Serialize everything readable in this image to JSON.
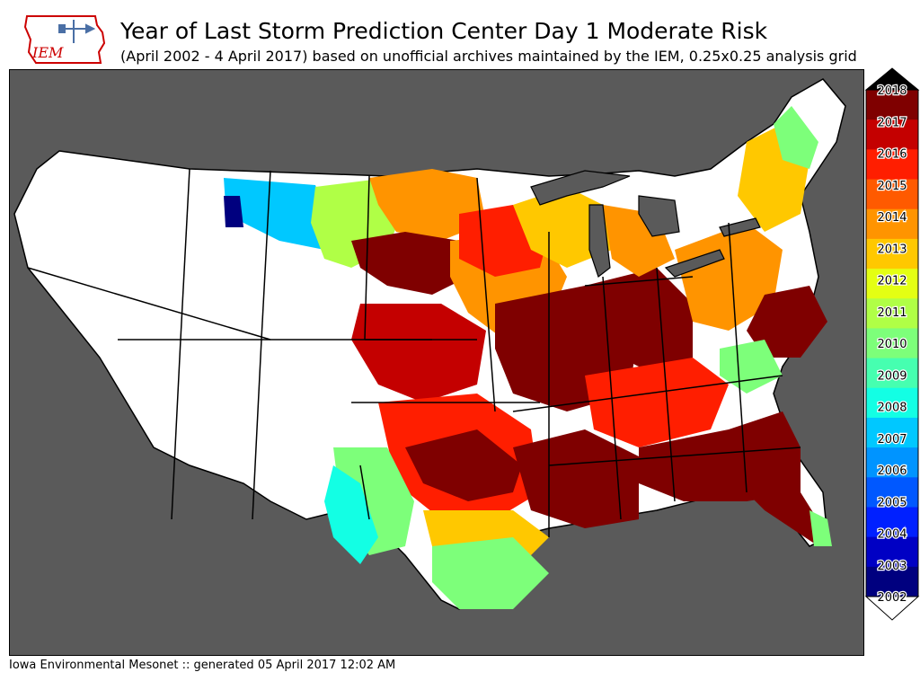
{
  "header": {
    "title": "Year of Last Storm Prediction Center Day 1 Moderate Risk",
    "subtitle": "(April 2002 - 4 April 2017) based on unofficial archives maintained by the IEM, 0.25x0.25 analysis grid"
  },
  "logo": {
    "text": "IEM",
    "color": "#cc0000"
  },
  "footer": {
    "credit": "Iowa Environmental Mesonet :: generated 05 April 2017 12:02 AM"
  },
  "legend": {
    "years": [
      "2018",
      "2017",
      "2016",
      "2015",
      "2014",
      "2013",
      "2012",
      "2011",
      "2010",
      "2009",
      "2008",
      "2007",
      "2006",
      "2005",
      "2004",
      "2003",
      "2002"
    ],
    "colors": [
      "#7f0000",
      "#c40000",
      "#ff1e00",
      "#ff5a00",
      "#ff9400",
      "#ffc800",
      "#e4ff13",
      "#b0ff46",
      "#7dff7a",
      "#46ffb0",
      "#13ffe4",
      "#00c8ff",
      "#0094ff",
      "#0058ff",
      "#0020ff",
      "#0000c4",
      "#00007f"
    ],
    "over_color": "#000000",
    "under_color": "#ffffff"
  },
  "map": {
    "background_color": "#5a5a5a",
    "no_data_color": "#ffffff",
    "border_color": "#000000"
  }
}
